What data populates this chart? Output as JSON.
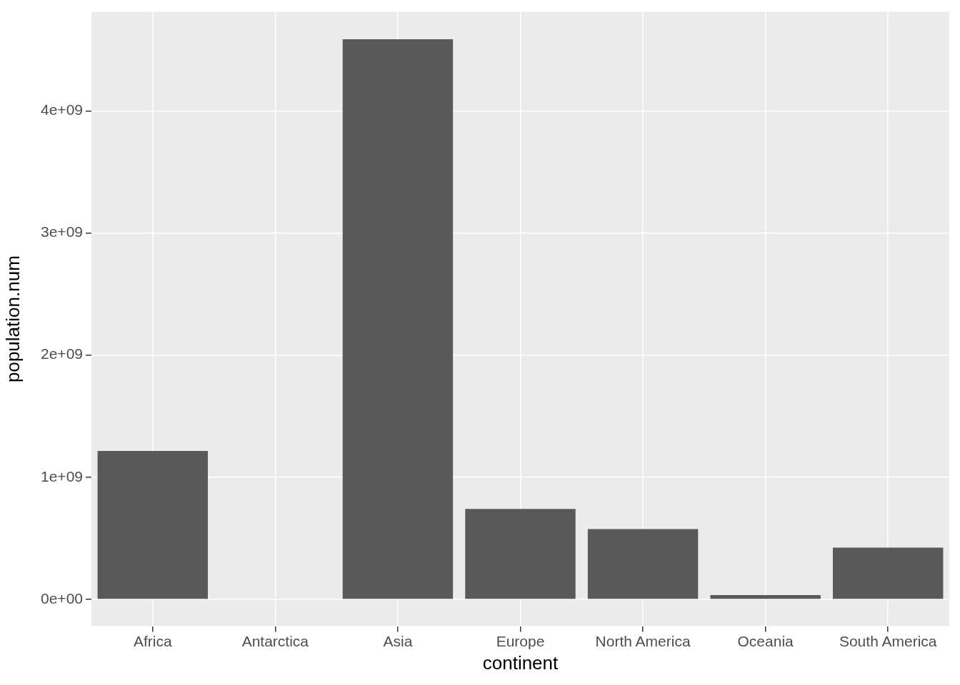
{
  "chart_data": {
    "type": "bar",
    "xlabel": "continent",
    "ylabel": "population.num",
    "categories": [
      "Africa",
      "Antarctica",
      "Asia",
      "Europe",
      "North America",
      "Oceania",
      "South America"
    ],
    "values": [
      1215000000.0,
      0,
      4586000000.0,
      740000000.0,
      575000000.0,
      35000000.0,
      423000000.0
    ],
    "color": "#595959",
    "ylim": [
      -220000000.0,
      4810000000.0
    ],
    "yticks": [
      {
        "value": 0,
        "label": "0e+00"
      },
      {
        "value": 1000000000.0,
        "label": "1e+09"
      },
      {
        "value": 2000000000.0,
        "label": "2e+09"
      },
      {
        "value": 3000000000.0,
        "label": "3e+09"
      },
      {
        "value": 4000000000.0,
        "label": "4e+09"
      }
    ],
    "grid": true,
    "legend": false
  }
}
